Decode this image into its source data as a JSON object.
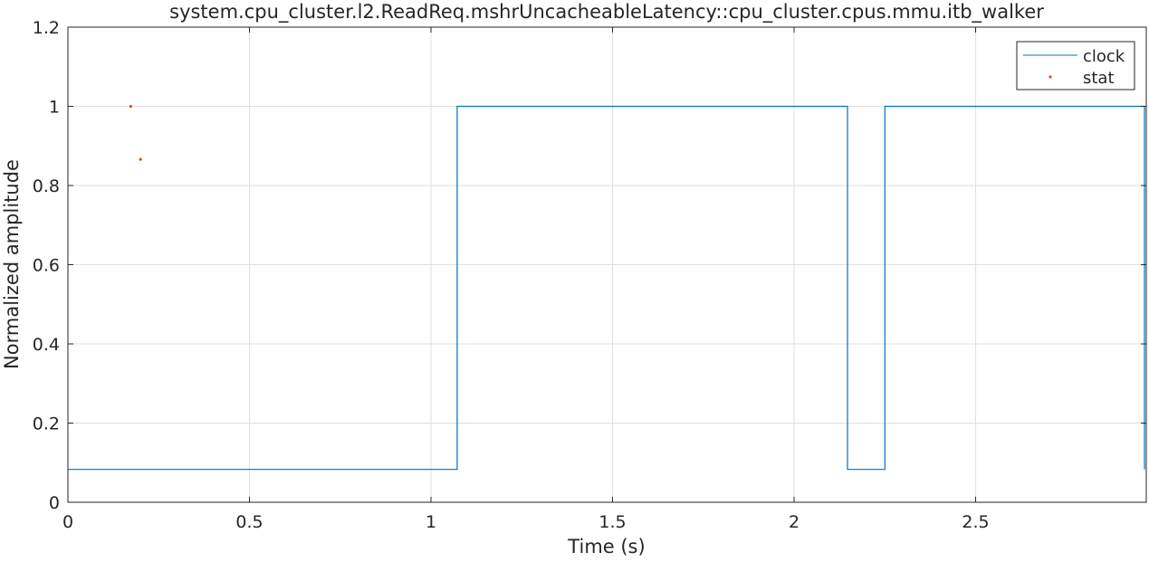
{
  "chart_data": {
    "type": "line",
    "title": "system.cpu_cluster.l2.ReadReq.mshrUncacheableLatency::cpu_cluster.cpus.mmu.itb_walker",
    "xlabel": "Time (s)",
    "ylabel": "Normalized amplitude",
    "xlim": [
      0,
      2.97
    ],
    "ylim": [
      0,
      1.2
    ],
    "grid": true,
    "legend_position": "top-right",
    "x_ticks": [
      0,
      0.5,
      1,
      1.5,
      2,
      2.5
    ],
    "x_tick_labels": [
      "0",
      "0.5",
      "1",
      "1.5",
      "2",
      "2.5"
    ],
    "y_ticks": [
      0,
      0.2,
      0.4,
      0.6,
      0.8,
      1,
      1.2
    ],
    "y_tick_labels": [
      "0",
      "0.2",
      "0.4",
      "0.6",
      "0.8",
      "1",
      "1.2"
    ],
    "series": [
      {
        "name": "clock",
        "style": "step-line",
        "color": "#0072BD",
        "x": [
          0,
          1.072,
          1.072,
          2.147,
          2.147,
          2.25,
          2.25,
          2.965,
          2.965
        ],
        "y": [
          0.083,
          0.083,
          1,
          1,
          0.083,
          0.083,
          1,
          1,
          0.083
        ]
      },
      {
        "name": "stat",
        "style": "markers",
        "color": "#D95319",
        "x": [
          0.173,
          0.2
        ],
        "y": [
          1,
          0.866
        ]
      }
    ]
  }
}
